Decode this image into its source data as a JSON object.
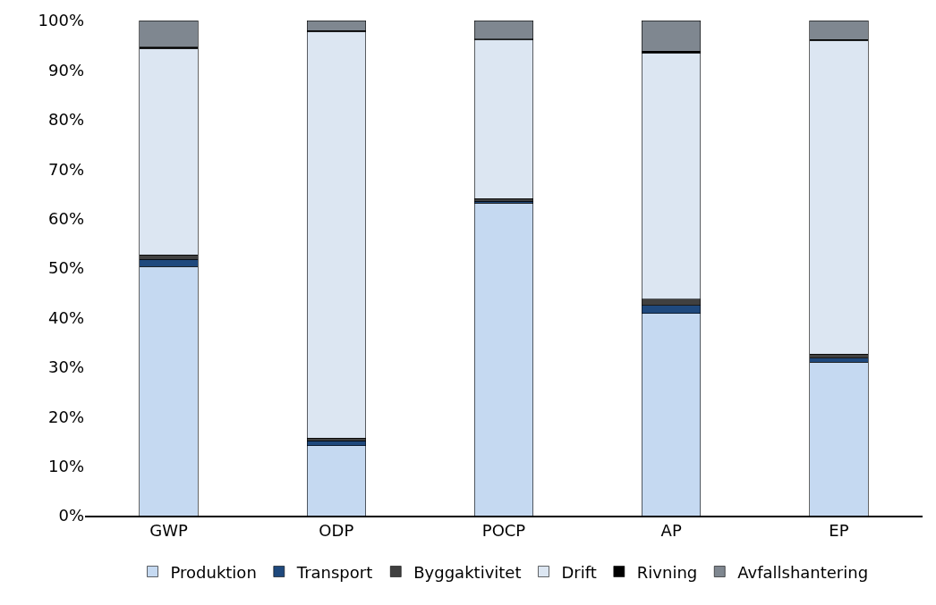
{
  "chart_data": {
    "type": "bar",
    "stacked": true,
    "categories": [
      "GWP",
      "ODP",
      "POCP",
      "AP",
      "EP"
    ],
    "series": [
      {
        "name": "Produktion",
        "color": "#c5d9f1",
        "values": [
          50.3,
          14.1,
          63.1,
          40.8,
          31.0
        ]
      },
      {
        "name": "Transport",
        "color": "#1f497d",
        "values": [
          1.5,
          1.0,
          0.4,
          1.7,
          0.8
        ]
      },
      {
        "name": "Byggaktivitet",
        "color": "#404040",
        "values": [
          0.9,
          0.6,
          0.5,
          1.2,
          0.8
        ]
      },
      {
        "name": "Drift",
        "color": "#dce6f2",
        "values": [
          41.7,
          82.1,
          32.2,
          49.8,
          63.4
        ]
      },
      {
        "name": "Rivning",
        "color": "#000000",
        "values": [
          0.2,
          0.2,
          0.1,
          0.3,
          0.2
        ]
      },
      {
        "name": "Avfallshantering",
        "color": "#7f8790",
        "values": [
          5.4,
          2.0,
          3.7,
          6.2,
          3.8
        ]
      }
    ],
    "ylim": [
      0,
      100
    ],
    "yticks": [
      {
        "value": 0,
        "label": "0%"
      },
      {
        "value": 10,
        "label": "10%"
      },
      {
        "value": 20,
        "label": "20%"
      },
      {
        "value": 30,
        "label": "30%"
      },
      {
        "value": 40,
        "label": "40%"
      },
      {
        "value": 50,
        "label": "50%"
      },
      {
        "value": 60,
        "label": "60%"
      },
      {
        "value": 70,
        "label": "70%"
      },
      {
        "value": 80,
        "label": "80%"
      },
      {
        "value": 90,
        "label": "90%"
      },
      {
        "value": 100,
        "label": "100%"
      }
    ],
    "grid": false,
    "legend": "bottom"
  }
}
